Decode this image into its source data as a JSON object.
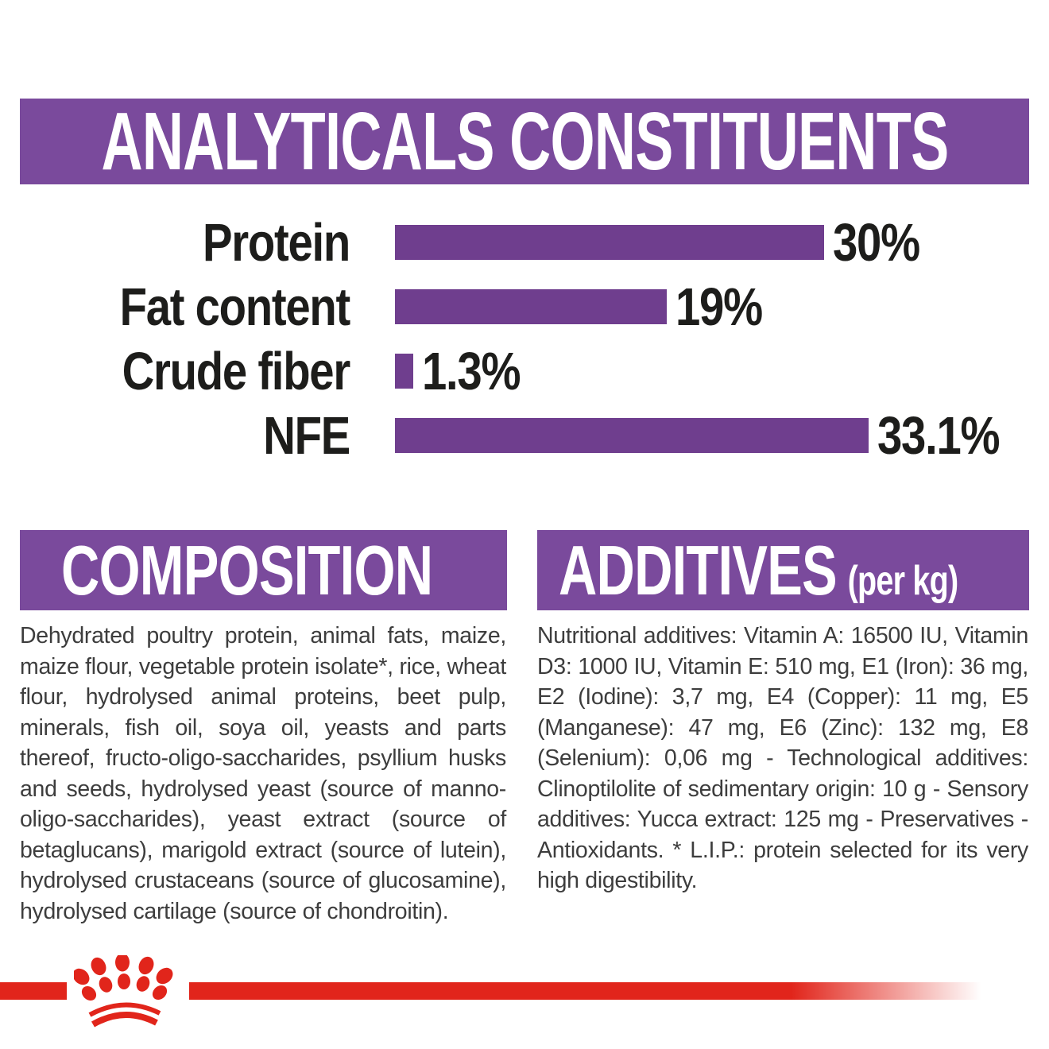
{
  "header": {
    "title": "ANALYTICALS CONSTITUENTS"
  },
  "chart_data": {
    "type": "bar",
    "orientation": "horizontal",
    "title": "ANALYTICALS CONSTITUENTS",
    "categories": [
      "Protein",
      "Fat content",
      "Crude fiber",
      "NFE"
    ],
    "values": [
      30,
      19,
      1.3,
      33.1
    ],
    "value_labels": [
      "30%",
      "19%",
      "1.3%",
      "33.1%"
    ],
    "unit": "%",
    "xlim": [
      0,
      35
    ],
    "grid": false,
    "legend": false,
    "bar_color": "#6f3e8e",
    "value_label_position": "right-of-bar"
  },
  "composition": {
    "title": "COMPOSITION",
    "body": "Dehydrated poultry protein, animal fats, maize, maize flour, vegetable protein isolate*, rice, wheat flour, hydrolysed animal proteins, beet pulp, minerals, fish oil, soya oil, yeasts and parts thereof, fructo-oligo-saccharides, psyllium husks and seeds, hydrolysed yeast (source of manno-oligo-saccharides), yeast extract (source of betaglucans), marigold extract (source of lutein), hydrolysed crustaceans (source of glucosamine), hydrolysed cartilage (source of chondroitin)."
  },
  "additives": {
    "title": "ADDITIVES",
    "title_suffix": "(per kg)",
    "body": "Nutritional additives: Vitamin A: 16500 IU, Vitamin D3: 1000 IU, Vitamin E: 510 mg, E1 (Iron): 36 mg, E2 (Iodine): 3,7 mg, E4 (Copper): 11 mg, E5 (Manganese): 47 mg, E6 (Zinc): 132 mg, E8 (Selenium): 0,06 mg - Technological additives: Clinoptilolite of sedimentary origin: 10 g - Sensory additives: Yucca extract: 125 mg - Preservatives - Antioxidants. * L.I.P.: protein selected for its very high digestibility."
  },
  "footer": {
    "logo_icon": "royal-canin-crown-icon"
  },
  "colors": {
    "band_purple": "#7a4a9c",
    "bar_purple": "#6f3e8e",
    "brand_red": "#e1251b",
    "heading_text": "#ffffff",
    "label_text": "#1d1d1b",
    "body_text": "#3d3d3d"
  }
}
